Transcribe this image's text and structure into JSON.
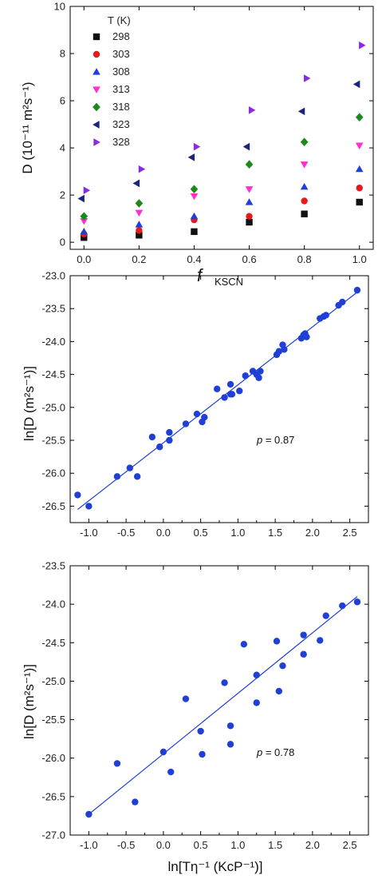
{
  "chart_data": [
    {
      "type": "scatter",
      "title": "",
      "xlabel_main": "f",
      "xlabel_sub": "KSCN",
      "ylabel": "D (10⁻¹¹ m²s⁻¹)",
      "xlim": [
        -0.05,
        1.05
      ],
      "ylim": [
        -0.3,
        10
      ],
      "xticks": [
        "0.0",
        "0.2",
        "0.4",
        "0.6",
        "0.8",
        "1.0"
      ],
      "xtick_values": [
        0.0,
        0.2,
        0.4,
        0.6,
        0.8,
        1.0
      ],
      "yticks": [
        "0",
        "2",
        "4",
        "6",
        "8",
        "10"
      ],
      "ytick_values": [
        0,
        2,
        4,
        6,
        8,
        10
      ],
      "legend_title": "T (K)",
      "legend_position": "top-left",
      "x": [
        0.0,
        0.2,
        0.4,
        0.6,
        0.8,
        1.0
      ],
      "series": [
        {
          "name": "298",
          "marker": "square",
          "color": "#111111",
          "values": [
            0.2,
            0.3,
            0.45,
            0.85,
            1.2,
            1.7
          ]
        },
        {
          "name": "303",
          "marker": "circle",
          "color": "#e41a1c",
          "values": [
            0.35,
            0.5,
            0.95,
            1.1,
            1.75,
            2.3
          ]
        },
        {
          "name": "308",
          "marker": "triangle-up",
          "color": "#1f3fd6",
          "values": [
            0.45,
            0.75,
            1.1,
            1.7,
            2.35,
            3.1
          ]
        },
        {
          "name": "313",
          "marker": "triangle-down",
          "color": "#ff2fd0",
          "values": [
            0.9,
            1.25,
            1.95,
            2.25,
            3.3,
            4.1
          ]
        },
        {
          "name": "318",
          "marker": "diamond",
          "color": "#1b8a1b",
          "values": [
            1.1,
            1.65,
            2.25,
            3.3,
            4.25,
            5.3
          ]
        },
        {
          "name": "323",
          "marker": "triangle-left",
          "color": "#1a237e",
          "values": [
            1.85,
            2.5,
            3.6,
            4.05,
            5.55,
            6.7
          ]
        },
        {
          "name": "328",
          "marker": "triangle-right",
          "color": "#8a2be2",
          "values": [
            2.2,
            3.1,
            4.05,
            5.6,
            6.95,
            8.35
          ]
        }
      ]
    },
    {
      "type": "scatter",
      "title": "",
      "xlabel": "",
      "ylabel": "ln[D (m²s⁻¹)]",
      "xlim": [
        -1.25,
        2.75
      ],
      "ylim": [
        -26.75,
        -23
      ],
      "xticks": [
        "-1.0",
        "-0.5",
        "0.0",
        "0.5",
        "1.0",
        "1.5",
        "2.0",
        "2.5"
      ],
      "xtick_values": [
        -1.0,
        -0.5,
        0.0,
        0.5,
        1.0,
        1.5,
        2.0,
        2.5
      ],
      "yticks": [
        "-23.0",
        "-23.5",
        "-24.0",
        "-24.5",
        "-25.0",
        "-25.5",
        "-26.0",
        "-26.5"
      ],
      "ytick_values": [
        -23.0,
        -23.5,
        -24.0,
        -24.5,
        -25.0,
        -25.5,
        -26.0,
        -26.5
      ],
      "annotation_p": "p",
      "annotation_value": " = 0.87",
      "color": "#1f3fd6",
      "fit_line": {
        "x": [
          -1.15,
          2.6
        ],
        "y": [
          -26.55,
          -23.25
        ]
      },
      "points": [
        [
          -1.15,
          -26.33
        ],
        [
          -1.0,
          -26.5
        ],
        [
          -0.62,
          -26.05
        ],
        [
          -0.45,
          -25.92
        ],
        [
          -0.35,
          -26.05
        ],
        [
          -0.15,
          -25.45
        ],
        [
          -0.05,
          -25.6
        ],
        [
          0.08,
          -25.5
        ],
        [
          0.08,
          -25.38
        ],
        [
          0.3,
          -25.25
        ],
        [
          0.45,
          -25.1
        ],
        [
          0.52,
          -25.22
        ],
        [
          0.55,
          -25.15
        ],
        [
          0.72,
          -24.72
        ],
        [
          0.82,
          -24.85
        ],
        [
          0.9,
          -24.8
        ],
        [
          0.9,
          -24.65
        ],
        [
          0.92,
          -24.8
        ],
        [
          1.02,
          -24.75
        ],
        [
          1.1,
          -24.52
        ],
        [
          1.2,
          -24.45
        ],
        [
          1.25,
          -24.5
        ],
        [
          1.28,
          -24.55
        ],
        [
          1.3,
          -24.45
        ],
        [
          1.52,
          -24.2
        ],
        [
          1.55,
          -24.15
        ],
        [
          1.6,
          -24.05
        ],
        [
          1.62,
          -24.12
        ],
        [
          1.85,
          -23.95
        ],
        [
          1.88,
          -23.9
        ],
        [
          1.9,
          -23.88
        ],
        [
          1.92,
          -23.93
        ],
        [
          2.1,
          -23.65
        ],
        [
          2.15,
          -23.62
        ],
        [
          2.18,
          -23.6
        ],
        [
          2.35,
          -23.45
        ],
        [
          2.4,
          -23.4
        ],
        [
          2.6,
          -23.22
        ]
      ]
    },
    {
      "type": "scatter",
      "title": "",
      "xlabel": "ln[Tη⁻¹ (KcP⁻¹)]",
      "ylabel": "ln[D (m²s⁻¹)]",
      "xlim": [
        -1.25,
        2.75
      ],
      "ylim": [
        -27,
        -23.5
      ],
      "xticks": [
        "-1.0",
        "-0.5",
        "0.0",
        "0.5",
        "1.0",
        "1.5",
        "2.0",
        "2.5"
      ],
      "xtick_values": [
        -1.0,
        -0.5,
        0.0,
        0.5,
        1.0,
        1.5,
        2.0,
        2.5
      ],
      "yticks": [
        "-23.5",
        "-24.0",
        "-24.5",
        "-25.0",
        "-25.5",
        "-26.0",
        "-26.5",
        "-27.0"
      ],
      "ytick_values": [
        -23.5,
        -24.0,
        -24.5,
        -25.0,
        -25.5,
        -26.0,
        -26.5,
        -27.0
      ],
      "annotation_p": "p",
      "annotation_value": " = 0.78",
      "color": "#1f3fd6",
      "fit_line": {
        "x": [
          -1.0,
          2.6
        ],
        "y": [
          -26.73,
          -23.9
        ]
      },
      "points": [
        [
          -1.0,
          -26.73
        ],
        [
          -0.62,
          -26.07
        ],
        [
          -0.38,
          -26.57
        ],
        [
          0.0,
          -25.92
        ],
        [
          0.1,
          -26.18
        ],
        [
          0.3,
          -25.23
        ],
        [
          0.5,
          -25.65
        ],
        [
          0.52,
          -25.95
        ],
        [
          0.82,
          -25.02
        ],
        [
          0.9,
          -25.58
        ],
        [
          0.9,
          -25.82
        ],
        [
          1.08,
          -24.52
        ],
        [
          1.25,
          -24.92
        ],
        [
          1.25,
          -25.28
        ],
        [
          1.52,
          -24.48
        ],
        [
          1.55,
          -25.13
        ],
        [
          1.6,
          -24.8
        ],
        [
          1.88,
          -24.4
        ],
        [
          1.88,
          -24.65
        ],
        [
          2.1,
          -24.47
        ],
        [
          2.18,
          -24.15
        ],
        [
          2.4,
          -24.02
        ],
        [
          2.6,
          -23.97
        ]
      ]
    }
  ]
}
